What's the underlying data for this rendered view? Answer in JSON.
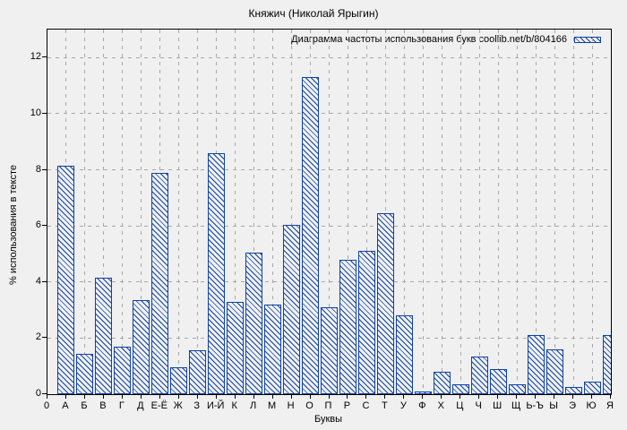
{
  "window": {
    "title": "Княжич (Николай Ярыгин)"
  },
  "chart_data": {
    "type": "bar",
    "title": "Княжич (Николай Ярыгин)",
    "xlabel": "Буквы",
    "ylabel": "% использования в тексте",
    "legend_label": "Диаграмма частоты использования букв coollib.net/b/804166",
    "legend_position": "top-right-inside",
    "grid": true,
    "hatch_style": "diagonal-backslash",
    "ylim": [
      0,
      13
    ],
    "yticks": [
      0,
      2,
      4,
      6,
      8,
      10,
      12
    ],
    "origin_tick_label": "0",
    "categories": [
      "А",
      "Б",
      "В",
      "Г",
      "Д",
      "Е-Ё",
      "Ж",
      "З",
      "И-Й",
      "К",
      "Л",
      "М",
      "Н",
      "О",
      "П",
      "Р",
      "С",
      "Т",
      "У",
      "Ф",
      "Х",
      "Ц",
      "Ч",
      "Ш",
      "Щ",
      "Ь-Ъ",
      "Ы",
      "Э",
      "Ю",
      "Я"
    ],
    "values": [
      8.15,
      1.45,
      4.15,
      1.7,
      3.35,
      7.9,
      0.95,
      1.55,
      8.6,
      3.3,
      5.05,
      3.2,
      6.05,
      11.3,
      3.1,
      4.8,
      5.1,
      6.45,
      2.8,
      0.1,
      0.8,
      0.35,
      1.35,
      0.9,
      0.35,
      2.1,
      1.6,
      0.25,
      0.45,
      2.1
    ]
  },
  "colors": {
    "background": "#f0f0f0",
    "bar": "#0e42a8",
    "grid": "#a8a8a8",
    "axis": "#000000",
    "text": "#000000"
  }
}
